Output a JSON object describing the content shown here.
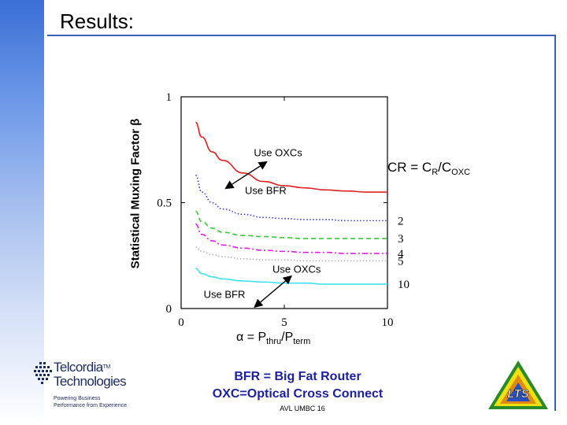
{
  "slide": {
    "title": "Results:",
    "legend_title_prefix": "CR = C",
    "legend_title_sub1": "R",
    "legend_title_mid": "/C",
    "legend_title_sub2": "OXC",
    "x_formula_symbol": "α",
    "x_formula_mid": " = P",
    "x_formula_sub1": "thru",
    "x_formula_sep": "/P",
    "x_formula_sub2": "term",
    "caption_line1": "BFR = Big Fat Router",
    "caption_line2": "OXC=Optical Cross Connect",
    "footer": "AVL UMBC 16",
    "logo_name_line1": "Telcordia",
    "logo_tm": "TM",
    "logo_name_line2": "Technologies",
    "logo_tagline_line1": "Powering Business",
    "logo_tagline_line2": "Performance from Experience",
    "lts_logo_text": "LTS"
  },
  "chart_data": {
    "type": "line",
    "title": "",
    "xlabel": "α = Pthru/Pterm",
    "ylabel": "Statistical Muxing Factor β",
    "xlim": [
      0,
      10
    ],
    "ylim": [
      0,
      1
    ],
    "x_ticks": [
      0,
      5,
      10
    ],
    "y_ticks": [
      0,
      0.5,
      1
    ],
    "x_tick_labels": [
      "0",
      "5",
      "10"
    ],
    "y_tick_labels": [
      "0",
      "0.5",
      "1"
    ],
    "grid": false,
    "legend": "right",
    "series": [
      {
        "name": "1",
        "show_label": false,
        "color": "#e02020",
        "dash": "solid",
        "x": [
          0.7,
          1.0,
          1.5,
          2.0,
          3.0,
          4.0,
          5.0,
          6.0,
          7.0,
          8.0,
          9.0,
          10.0
        ],
        "y": [
          0.88,
          0.81,
          0.74,
          0.7,
          0.64,
          0.6,
          0.58,
          0.57,
          0.56,
          0.555,
          0.55,
          0.55
        ]
      },
      {
        "name": "2",
        "show_label": true,
        "color": "#3a3ad0",
        "dash": "dotted",
        "x": [
          0.7,
          1.0,
          1.5,
          2.0,
          3.0,
          4.0,
          5.0,
          6.0,
          7.0,
          8.0,
          9.0,
          10.0
        ],
        "y": [
          0.63,
          0.55,
          0.5,
          0.47,
          0.445,
          0.43,
          0.425,
          0.42,
          0.42,
          0.415,
          0.415,
          0.415
        ]
      },
      {
        "name": "3",
        "show_label": true,
        "color": "#33cc33",
        "dash": "dashed",
        "x": [
          0.7,
          1.0,
          1.5,
          2.0,
          3.0,
          4.0,
          5.0,
          6.0,
          7.0,
          8.0,
          9.0,
          10.0
        ],
        "y": [
          0.46,
          0.41,
          0.38,
          0.36,
          0.345,
          0.34,
          0.335,
          0.33,
          0.33,
          0.33,
          0.33,
          0.33
        ]
      },
      {
        "name": "4",
        "show_label": true,
        "color": "#e020e0",
        "dash": "dashdot",
        "x": [
          0.7,
          1.0,
          1.5,
          2.0,
          3.0,
          4.0,
          5.0,
          6.0,
          7.0,
          8.0,
          9.0,
          10.0
        ],
        "y": [
          0.4,
          0.35,
          0.32,
          0.3,
          0.285,
          0.275,
          0.27,
          0.265,
          0.265,
          0.26,
          0.26,
          0.26
        ]
      },
      {
        "name": "5",
        "show_label": true,
        "color": "#b0b0b0",
        "dash": "dotted",
        "x": [
          0.7,
          1.0,
          1.5,
          2.0,
          3.0,
          4.0,
          5.0,
          6.0,
          7.0,
          8.0,
          9.0,
          10.0
        ],
        "y": [
          0.29,
          0.27,
          0.255,
          0.245,
          0.235,
          0.23,
          0.23,
          0.225,
          0.225,
          0.225,
          0.225,
          0.225
        ]
      },
      {
        "name": "10",
        "show_label": true,
        "color": "#40e0f0",
        "dash": "solid",
        "x": [
          0.7,
          1.0,
          1.5,
          2.0,
          3.0,
          4.0,
          5.0,
          6.0,
          7.0,
          8.0,
          9.0,
          10.0
        ],
        "y": [
          0.19,
          0.165,
          0.15,
          0.14,
          0.13,
          0.125,
          0.12,
          0.12,
          0.115,
          0.115,
          0.115,
          0.115
        ]
      }
    ],
    "annotations": [
      {
        "text": "Use OXCs",
        "x": 4.7,
        "y": 0.72
      },
      {
        "text": "Use BFR",
        "x": 4.1,
        "y": 0.54
      },
      {
        "text": "Use OXCs",
        "x": 5.6,
        "y": 0.17
      },
      {
        "text": "Use BFR",
        "x": 2.1,
        "y": 0.05
      }
    ],
    "arrows": [
      {
        "from": [
          2.2,
          0.57
        ],
        "to": [
          4.1,
          0.69
        ]
      },
      {
        "from": [
          3.6,
          0.01
        ],
        "to": [
          5.3,
          0.15
        ]
      }
    ]
  }
}
